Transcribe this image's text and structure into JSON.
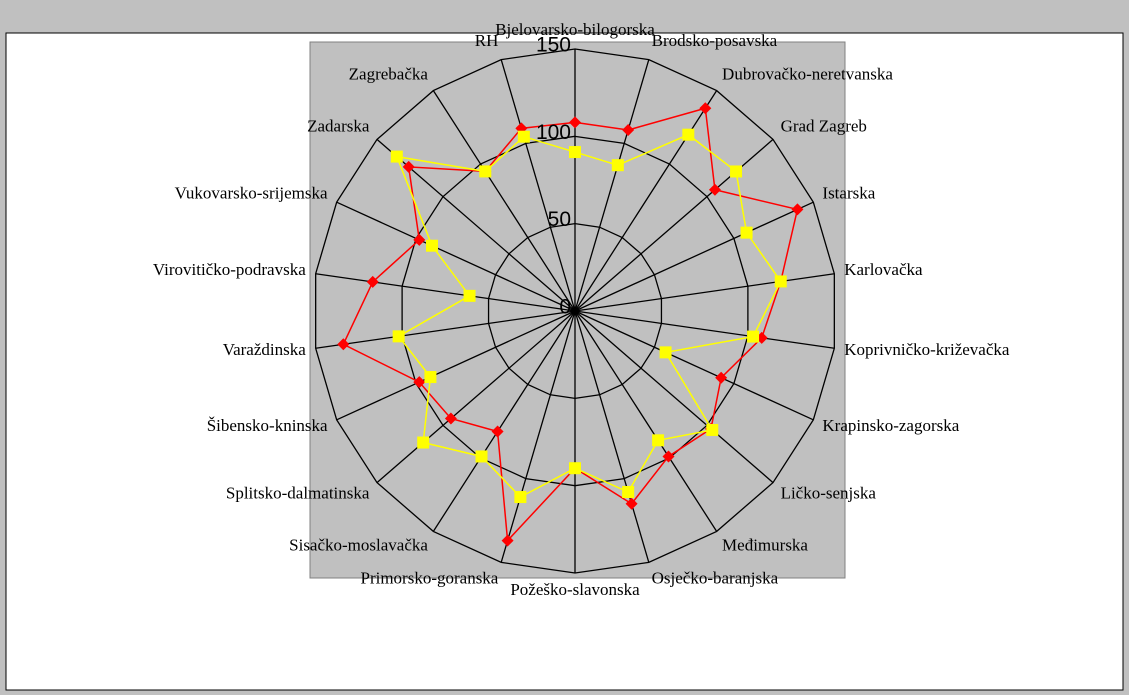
{
  "chart_data": {
    "type": "radar",
    "categories": [
      "Bjelovarsko-bilogorska",
      "Brodsko-posavska",
      "Dubrovačko-neretvanska",
      "Grad Zagreb",
      "Istarska",
      "Karlovačka",
      "Koprivničko-križevačka",
      "Krapinsko-zagorska",
      "Ličko-senjska",
      "Međimurska",
      "Osječko-baranjska",
      "Požeško-slavonska",
      "Primorsko-goranska",
      "Sisačko-moslavačka",
      "Splitsko-dalmatinska",
      "Šibensko-kninska",
      "Varaždinska",
      "Virovitičko-podravska",
      "Vukovarsko-srijemska",
      "Zadarska",
      "Zagrebačka",
      "RH"
    ],
    "series": [
      {
        "color": "#ff0000",
        "values": [
          108,
          108,
          138,
          106,
          140,
          119,
          108,
          92,
          103,
          99,
          115,
          90,
          137,
          82,
          94,
          98,
          134,
          117,
          98,
          126,
          95,
          109
        ]
      },
      {
        "color": "#ffff00",
        "values": [
          91,
          87,
          120,
          122,
          108,
          119,
          103,
          57,
          104,
          88,
          108,
          90,
          111,
          99,
          115,
          91,
          102,
          61,
          90,
          135,
          95,
          104
        ]
      }
    ],
    "ylim": [
      0,
      150
    ],
    "yticks": [
      0,
      50,
      100,
      150
    ],
    "grid": true
  }
}
